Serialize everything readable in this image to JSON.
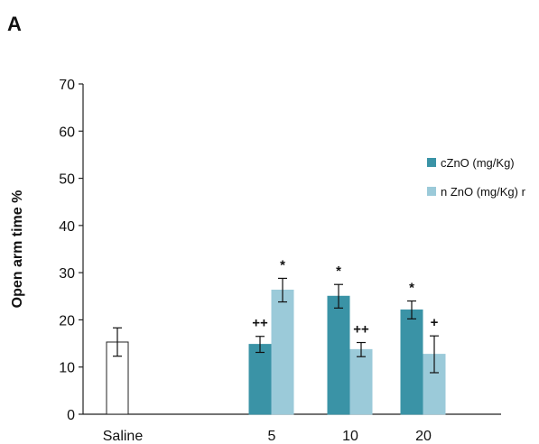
{
  "panel_letter": "A",
  "chart_data": {
    "type": "bar",
    "ylabel": "Open arm time %",
    "ylim": [
      0,
      70
    ],
    "yticks": [
      0,
      10,
      20,
      30,
      40,
      50,
      60,
      70
    ],
    "categories": [
      "Saline",
      "5",
      "10",
      "20"
    ],
    "legend_position": "right",
    "series": [
      {
        "name": "Saline",
        "color": "#ffffff",
        "stroke": "#222222",
        "points": [
          {
            "category": "Saline",
            "value": 15.3,
            "error": 3.0,
            "annotation": ""
          }
        ]
      },
      {
        "name": "cZnO (mg/Kg)",
        "color": "#3a93a6",
        "stroke": "#3a93a6",
        "points": [
          {
            "category": "5",
            "value": 14.8,
            "error": 1.7,
            "annotation": "++"
          },
          {
            "category": "10",
            "value": 25.0,
            "error": 2.5,
            "annotation": "*"
          },
          {
            "category": "20",
            "value": 22.1,
            "error": 1.9,
            "annotation": "*"
          }
        ]
      },
      {
        "name": "n ZnO (mg/Kg) r",
        "color": "#9bcad9",
        "stroke": "#9bcad9",
        "points": [
          {
            "category": "5",
            "value": 26.3,
            "error": 2.5,
            "annotation": "*"
          },
          {
            "category": "10",
            "value": 13.7,
            "error": 1.5,
            "annotation": "++"
          },
          {
            "category": "20",
            "value": 12.7,
            "error": 3.9,
            "annotation": "+"
          }
        ]
      }
    ]
  }
}
